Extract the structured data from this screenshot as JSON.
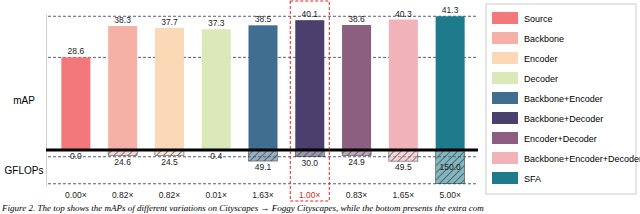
{
  "chart_data": [
    {
      "type": "bar",
      "y_label": "mAP",
      "categories": [
        "Source",
        "Backbone",
        "Encoder",
        "Decoder",
        "Backbone+Encoder",
        "Backbone+Decoder",
        "Encoder+Decoder",
        "Backbone+Encoder+Decoder",
        "SFA"
      ],
      "values": [
        28.6,
        38.3,
        37.7,
        37.3,
        38.5,
        40.1,
        38.6,
        40.3,
        41.3
      ],
      "colors": [
        "#f2787c",
        "#f5b1a6",
        "#fbd8b6",
        "#dbe8ba",
        "#3f6e90",
        "#4b406d",
        "#8c5f80",
        "#f1b3b9",
        "#1d7b8c"
      ],
      "ylim": [
        0,
        42
      ],
      "yticks": [],
      "tick_labels": false,
      "data_labels": true,
      "legend": "right"
    },
    {
      "type": "bar",
      "y_label": "GFLOPs",
      "categories": [
        "Source",
        "Backbone",
        "Encoder",
        "Decoder",
        "Backbone+Encoder",
        "Backbone+Decoder",
        "Encoder+Decoder",
        "Backbone+Encoder+Decoder",
        "SFA"
      ],
      "values": [
        0.0,
        24.6,
        24.5,
        0.4,
        49.1,
        30.0,
        24.9,
        49.5,
        150.0
      ],
      "colors": [
        "#f2787c",
        "#f5b1a6",
        "#fbd8b6",
        "#dbe8ba",
        "#3f6e90",
        "#4b406d",
        "#8c5f80",
        "#f1b3b9",
        "#1d7b8c"
      ],
      "ylim": [
        0,
        160
      ],
      "yticks": [],
      "tick_labels": false,
      "data_labels": true,
      "relative_cost": [
        0.0,
        0.82,
        0.82,
        0.01,
        1.63,
        1.0,
        0.83,
        1.65,
        5.0
      ],
      "relative_cost_labels": [
        "0.00×",
        "0.82×",
        "0.82×",
        "0.01×",
        "1.63×",
        "1.00×",
        "0.83×",
        "1.65×",
        "5.00×"
      ],
      "relative_cost_colors": [
        "#222222",
        "#222222",
        "#222222",
        "#222222",
        "#222222",
        "#e0231c",
        "#222222",
        "#222222",
        "#222222"
      ]
    }
  ],
  "caption": "Figure 2. The top shows the mAPs of different variations on Cityscapes → Foggy Cityscapes, while the bottom presents the extra com"
}
